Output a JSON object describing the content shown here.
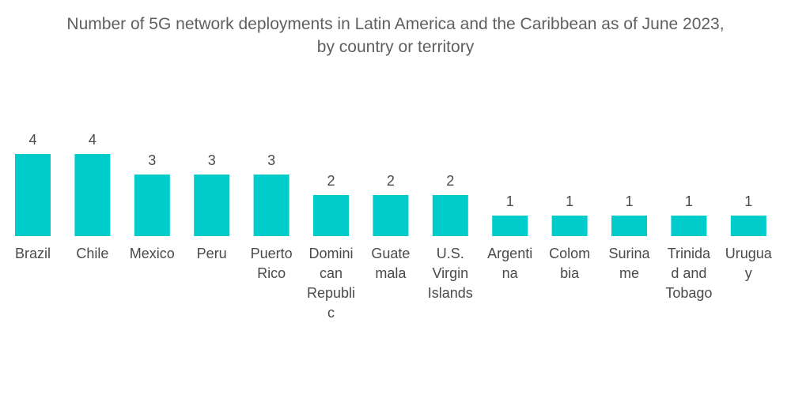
{
  "chart_data": {
    "type": "bar",
    "title": "Number of 5G network deployments in Latin America and the Caribbean as of June 2023,\nby country or territory",
    "categories": [
      "Brazil",
      "Chile",
      "Mexico",
      "Peru",
      "Puerto Rico",
      "Dominican Republic",
      "Guatemala",
      "U.S. Virgin Islands",
      "Argentina",
      "Colombia",
      "Suriname",
      "Trinidad and Tobago",
      "Uruguay"
    ],
    "category_label_lines": [
      [
        "Brazil"
      ],
      [
        "Chile"
      ],
      [
        "Mexico"
      ],
      [
        "Peru"
      ],
      [
        "Puerto",
        "Rico"
      ],
      [
        "Domini",
        "can",
        "Republi",
        "c"
      ],
      [
        "Guate",
        "mala"
      ],
      [
        "U.S.",
        "Virgin",
        "Islands"
      ],
      [
        "Argenti",
        "na"
      ],
      [
        "Colom",
        "bia"
      ],
      [
        "Surina",
        "me"
      ],
      [
        "Trinida",
        "d and",
        "Tobago"
      ],
      [
        "Urugua",
        "y"
      ]
    ],
    "values": [
      4,
      4,
      3,
      3,
      3,
      2,
      2,
      2,
      1,
      1,
      1,
      1,
      1
    ],
    "xlabel": "",
    "ylabel": "",
    "ylim": [
      0,
      4
    ],
    "grid": false,
    "legend": "none",
    "bar_color": "#00cccc",
    "data_labels": true
  }
}
